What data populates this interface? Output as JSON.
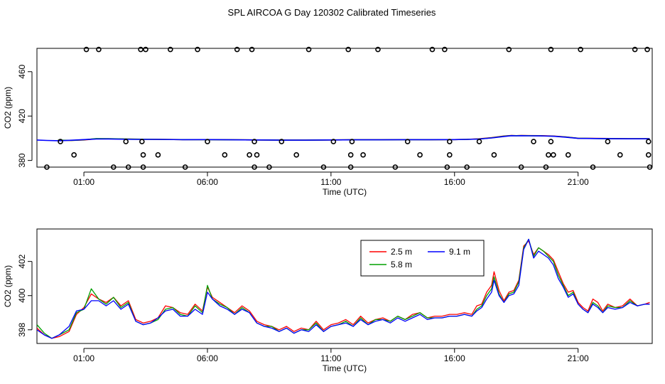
{
  "figure": {
    "title": "SPL AIRCOA G  Day 120302  Calibrated Timeseries"
  },
  "chart_data": [
    {
      "type": "line",
      "panel": "top",
      "xlabel": "Time (UTC)",
      "ylabel": "CO2 (ppm)",
      "xlim": [
        -0.9,
        24.0
      ],
      "ylim": [
        374,
        481
      ],
      "x_ticks": [
        1,
        6,
        11,
        16,
        21
      ],
      "x_tick_labels": [
        "01:00",
        "06:00",
        "11:00",
        "16:00",
        "21:00"
      ],
      "y_ticks": [
        380,
        420,
        460
      ],
      "y_tick_labels": [
        "380",
        "420",
        "460"
      ],
      "grid": false,
      "series": [
        {
          "color": "#ff0000",
          "x": [
            -0.05,
            0.5,
            1.0,
            1.5,
            2.0,
            3.0,
            4.0,
            5.0,
            6.0,
            7.0,
            8.0,
            9.0,
            10.0,
            11.0,
            12.0,
            13.0,
            14.0,
            15.0,
            16.0,
            16.5,
            17.0,
            17.5,
            18.0,
            18.3,
            18.5,
            18.7,
            19.0,
            19.5,
            20.0,
            20.5,
            21.0,
            22.0,
            23.0,
            23.9
          ],
          "y": [
            398.2,
            398.0,
            398.5,
            399.5,
            399.5,
            399.2,
            399.0,
            398.8,
            398.8,
            398.6,
            398.5,
            398.3,
            398.3,
            398.5,
            398.6,
            398.6,
            398.8,
            398.7,
            398.8,
            399.0,
            399.5,
            400.5,
            402.0,
            402.5,
            402.3,
            402.5,
            402.4,
            402.3,
            402.0,
            401.2,
            400.0,
            399.8,
            399.6,
            399.6
          ]
        },
        {
          "color": "#00a000",
          "x": [
            -0.05,
            0.5,
            1.0,
            1.5,
            2.0,
            3.0,
            4.0,
            5.0,
            6.0,
            7.0,
            8.0,
            9.0,
            10.0,
            11.0,
            12.0,
            13.0,
            14.0,
            15.0,
            16.0,
            16.5,
            17.0,
            17.5,
            18.0,
            18.3,
            18.5,
            18.7,
            19.0,
            19.5,
            20.0,
            20.5,
            21.0,
            22.0,
            23.0,
            23.9
          ],
          "y": [
            398.3,
            398.0,
            398.6,
            399.7,
            399.6,
            399.2,
            399.0,
            398.8,
            398.7,
            398.6,
            398.5,
            398.3,
            398.3,
            398.5,
            398.6,
            398.6,
            398.7,
            398.7,
            398.8,
            399.0,
            399.4,
            400.4,
            401.8,
            402.4,
            402.3,
            402.4,
            402.3,
            402.2,
            401.9,
            401.1,
            400.0,
            399.7,
            399.6,
            399.6
          ]
        },
        {
          "color": "#0000ff",
          "x": [
            -0.9,
            -0.5,
            0.0,
            0.5,
            1.0,
            1.5,
            2.0,
            3.0,
            4.0,
            5.0,
            6.0,
            7.0,
            8.0,
            9.0,
            10.0,
            11.0,
            12.0,
            13.0,
            14.0,
            15.0,
            16.0,
            16.5,
            17.0,
            17.5,
            18.0,
            18.3,
            18.5,
            18.7,
            19.0,
            19.5,
            20.0,
            20.5,
            21.0,
            22.0,
            23.0,
            23.9
          ],
          "y": [
            398.4,
            398.0,
            397.8,
            398.2,
            398.8,
            399.3,
            399.4,
            399.0,
            399.0,
            398.7,
            398.8,
            398.6,
            398.5,
            398.3,
            398.3,
            398.5,
            398.6,
            398.6,
            398.7,
            398.7,
            398.8,
            399.0,
            399.3,
            400.3,
            401.6,
            402.3,
            402.2,
            402.3,
            402.2,
            402.1,
            401.8,
            401.0,
            399.9,
            399.7,
            399.5,
            399.5
          ]
        }
      ],
      "markers": {
        "style": "open-circle",
        "x": [
          -0.5,
          0.05,
          0.6,
          1.1,
          1.6,
          2.2,
          2.7,
          2.8,
          3.3,
          3.35,
          3.4,
          3.4,
          3.5,
          4.0,
          4.5,
          5.1,
          5.6,
          6.0,
          6.7,
          7.2,
          7.7,
          7.8,
          7.9,
          7.9,
          8.0,
          8.5,
          9.0,
          9.6,
          10.1,
          10.7,
          11.1,
          11.7,
          11.8,
          11.8,
          11.85,
          12.3,
          12.9,
          13.6,
          14.1,
          14.6,
          15.1,
          15.6,
          15.7,
          15.8,
          15.8,
          16.5,
          17.0,
          17.6,
          18.2,
          18.7,
          19.2,
          19.7,
          19.8,
          19.9,
          19.9,
          20.0,
          20.6,
          21.1,
          21.6,
          22.2,
          22.7,
          23.3,
          23.8,
          23.85,
          23.85,
          23.9
        ],
        "y": [
          374,
          397,
          385,
          480,
          480,
          374,
          397,
          374,
          480,
          397,
          374,
          385,
          480,
          385,
          480,
          374,
          480,
          397,
          385,
          480,
          385,
          480,
          374,
          397,
          385,
          374,
          397,
          385,
          480,
          374,
          397,
          480,
          374,
          385,
          397,
          385,
          480,
          374,
          397,
          385,
          480,
          480,
          374,
          385,
          397,
          374,
          397,
          385,
          480,
          374,
          397,
          374,
          385,
          397,
          480,
          385,
          385,
          480,
          374,
          397,
          385,
          480,
          480,
          385,
          397,
          374
        ]
      }
    },
    {
      "type": "line",
      "panel": "bottom",
      "xlabel": "Time (UTC)",
      "ylabel": "CO2 (ppm)",
      "xlim": [
        -0.9,
        24.0
      ],
      "ylim": [
        397.2,
        403.9
      ],
      "x_ticks": [
        1,
        6,
        11,
        16,
        21
      ],
      "x_tick_labels": [
        "01:00",
        "06:00",
        "11:00",
        "16:00",
        "21:00"
      ],
      "y_ticks": [
        398,
        400,
        402
      ],
      "y_tick_labels": [
        "398",
        "400",
        "402"
      ],
      "grid": false,
      "legend": "top-right",
      "series": [
        {
          "name": "2.5 m",
          "color": "#ff0000",
          "x": [
            -0.9,
            -0.6,
            -0.3,
            0.0,
            0.4,
            0.7,
            1.0,
            1.3,
            1.6,
            1.9,
            2.2,
            2.5,
            2.8,
            3.1,
            3.4,
            3.7,
            4.0,
            4.3,
            4.6,
            4.9,
            5.2,
            5.5,
            5.8,
            6.0,
            6.2,
            6.5,
            6.8,
            7.1,
            7.4,
            7.7,
            8.0,
            8.3,
            8.6,
            8.9,
            9.2,
            9.5,
            9.8,
            10.1,
            10.4,
            10.7,
            11.0,
            11.3,
            11.6,
            11.9,
            12.2,
            12.5,
            12.8,
            13.1,
            13.4,
            13.7,
            14.0,
            14.3,
            14.6,
            14.9,
            15.2,
            15.5,
            15.8,
            16.1,
            16.4,
            16.7,
            16.9,
            17.1,
            17.3,
            17.5,
            17.6,
            17.8,
            18.0,
            18.2,
            18.4,
            18.6,
            18.8,
            19.0,
            19.2,
            19.4,
            19.6,
            19.8,
            20.0,
            20.2,
            20.4,
            20.6,
            20.8,
            21.0,
            21.2,
            21.4,
            21.6,
            21.8,
            22.0,
            22.2,
            22.5,
            22.8,
            23.1,
            23.4,
            23.7,
            23.9
          ],
          "y": [
            398.1,
            397.7,
            397.5,
            397.6,
            397.9,
            398.9,
            399.3,
            400.1,
            399.8,
            399.6,
            399.9,
            399.4,
            399.7,
            398.6,
            398.4,
            398.5,
            398.7,
            399.4,
            399.3,
            399.0,
            398.9,
            399.5,
            399.1,
            400.5,
            399.9,
            399.6,
            399.3,
            399.0,
            399.4,
            399.1,
            398.5,
            398.3,
            398.2,
            398.0,
            398.2,
            397.9,
            398.1,
            398.0,
            398.5,
            398.0,
            398.3,
            398.4,
            398.6,
            398.3,
            398.8,
            398.4,
            398.6,
            398.7,
            398.5,
            398.8,
            398.6,
            398.9,
            399.0,
            398.7,
            398.8,
            398.8,
            398.9,
            398.9,
            399.0,
            398.9,
            399.4,
            399.5,
            400.2,
            400.6,
            401.4,
            400.3,
            399.7,
            400.2,
            400.3,
            400.9,
            402.9,
            403.2,
            402.4,
            402.8,
            402.6,
            402.4,
            402.1,
            401.4,
            400.7,
            400.2,
            400.3,
            399.6,
            399.3,
            399.1,
            399.8,
            399.6,
            399.1,
            399.5,
            399.3,
            399.4,
            399.8,
            399.4,
            399.5,
            399.6
          ]
        },
        {
          "name": "5.8 m",
          "color": "#00a000",
          "x": [
            -0.9,
            -0.6,
            -0.3,
            0.0,
            0.4,
            0.7,
            1.0,
            1.3,
            1.6,
            1.9,
            2.2,
            2.5,
            2.8,
            3.1,
            3.4,
            3.7,
            4.0,
            4.3,
            4.6,
            4.9,
            5.2,
            5.5,
            5.8,
            6.0,
            6.2,
            6.5,
            6.8,
            7.1,
            7.4,
            7.7,
            8.0,
            8.3,
            8.6,
            8.9,
            9.2,
            9.5,
            9.8,
            10.1,
            10.4,
            10.7,
            11.0,
            11.3,
            11.6,
            11.9,
            12.2,
            12.5,
            12.8,
            13.1,
            13.4,
            13.7,
            14.0,
            14.3,
            14.6,
            14.9,
            15.2,
            15.5,
            15.8,
            16.1,
            16.4,
            16.7,
            16.9,
            17.1,
            17.3,
            17.5,
            17.6,
            17.8,
            18.0,
            18.2,
            18.4,
            18.6,
            18.8,
            19.0,
            19.2,
            19.4,
            19.6,
            19.8,
            20.0,
            20.2,
            20.4,
            20.6,
            20.8,
            21.0,
            21.2,
            21.4,
            21.6,
            21.8,
            22.0,
            22.2,
            22.5,
            22.8,
            23.1,
            23.4,
            23.7,
            23.9
          ],
          "y": [
            398.3,
            397.8,
            397.5,
            397.7,
            398.0,
            399.0,
            399.2,
            400.4,
            399.8,
            399.5,
            399.9,
            399.3,
            399.6,
            398.5,
            398.3,
            398.4,
            398.6,
            399.2,
            399.3,
            398.9,
            398.8,
            399.4,
            399.0,
            400.6,
            399.8,
            399.5,
            399.3,
            398.9,
            399.3,
            399.0,
            398.4,
            398.2,
            398.2,
            397.9,
            398.1,
            397.8,
            398.0,
            398.0,
            398.4,
            397.9,
            398.2,
            398.3,
            398.5,
            398.2,
            398.7,
            398.3,
            398.6,
            398.6,
            398.5,
            398.8,
            398.6,
            398.8,
            399.0,
            398.7,
            398.7,
            398.7,
            398.8,
            398.8,
            398.9,
            398.8,
            399.2,
            399.4,
            400.0,
            400.4,
            401.1,
            400.1,
            399.6,
            400.1,
            400.2,
            400.8,
            402.8,
            403.3,
            402.3,
            402.8,
            402.6,
            402.3,
            402.0,
            401.2,
            400.6,
            400.0,
            400.2,
            399.5,
            399.2,
            399.0,
            399.6,
            399.4,
            399.0,
            399.4,
            399.3,
            399.3,
            399.7,
            399.4,
            399.5,
            399.5
          ]
        },
        {
          "name": "9.1 m",
          "color": "#0000ff",
          "x": [
            -0.9,
            -0.6,
            -0.3,
            0.0,
            0.4,
            0.7,
            1.0,
            1.3,
            1.6,
            1.9,
            2.2,
            2.5,
            2.8,
            3.1,
            3.4,
            3.7,
            4.0,
            4.3,
            4.6,
            4.9,
            5.2,
            5.5,
            5.8,
            6.0,
            6.2,
            6.5,
            6.8,
            7.1,
            7.4,
            7.7,
            8.0,
            8.3,
            8.6,
            8.9,
            9.2,
            9.5,
            9.8,
            10.1,
            10.4,
            10.7,
            11.0,
            11.3,
            11.6,
            11.9,
            12.2,
            12.5,
            12.8,
            13.1,
            13.4,
            13.7,
            14.0,
            14.3,
            14.6,
            14.9,
            15.2,
            15.5,
            15.8,
            16.1,
            16.4,
            16.7,
            16.9,
            17.1,
            17.3,
            17.5,
            17.6,
            17.8,
            18.0,
            18.2,
            18.4,
            18.6,
            18.8,
            19.0,
            19.2,
            19.4,
            19.6,
            19.8,
            20.0,
            20.2,
            20.4,
            20.6,
            20.8,
            21.0,
            21.2,
            21.4,
            21.6,
            21.8,
            22.0,
            22.2,
            22.5,
            22.8,
            23.1,
            23.4,
            23.7,
            23.9
          ],
          "y": [
            398.0,
            397.7,
            397.5,
            397.7,
            398.2,
            399.1,
            399.2,
            399.7,
            399.7,
            399.4,
            399.7,
            399.2,
            399.5,
            398.5,
            398.3,
            398.4,
            398.7,
            399.1,
            399.2,
            398.8,
            398.8,
            399.2,
            398.9,
            400.2,
            399.8,
            399.4,
            399.2,
            398.9,
            399.2,
            399.0,
            398.4,
            398.2,
            398.1,
            397.9,
            398.1,
            397.8,
            398.0,
            397.9,
            398.3,
            397.9,
            398.2,
            398.3,
            398.4,
            398.2,
            398.6,
            398.3,
            398.5,
            398.6,
            398.4,
            398.7,
            398.5,
            398.7,
            398.9,
            398.6,
            398.7,
            398.7,
            398.8,
            398.8,
            398.9,
            398.8,
            399.1,
            399.3,
            399.8,
            400.2,
            400.9,
            400.0,
            399.6,
            400.0,
            400.1,
            400.6,
            402.7,
            403.3,
            402.2,
            402.6,
            402.4,
            402.2,
            401.8,
            401.0,
            400.5,
            399.9,
            400.1,
            399.5,
            399.2,
            399.0,
            399.5,
            399.3,
            399.0,
            399.3,
            399.2,
            399.3,
            399.6,
            399.4,
            399.5,
            399.5
          ]
        }
      ]
    }
  ]
}
